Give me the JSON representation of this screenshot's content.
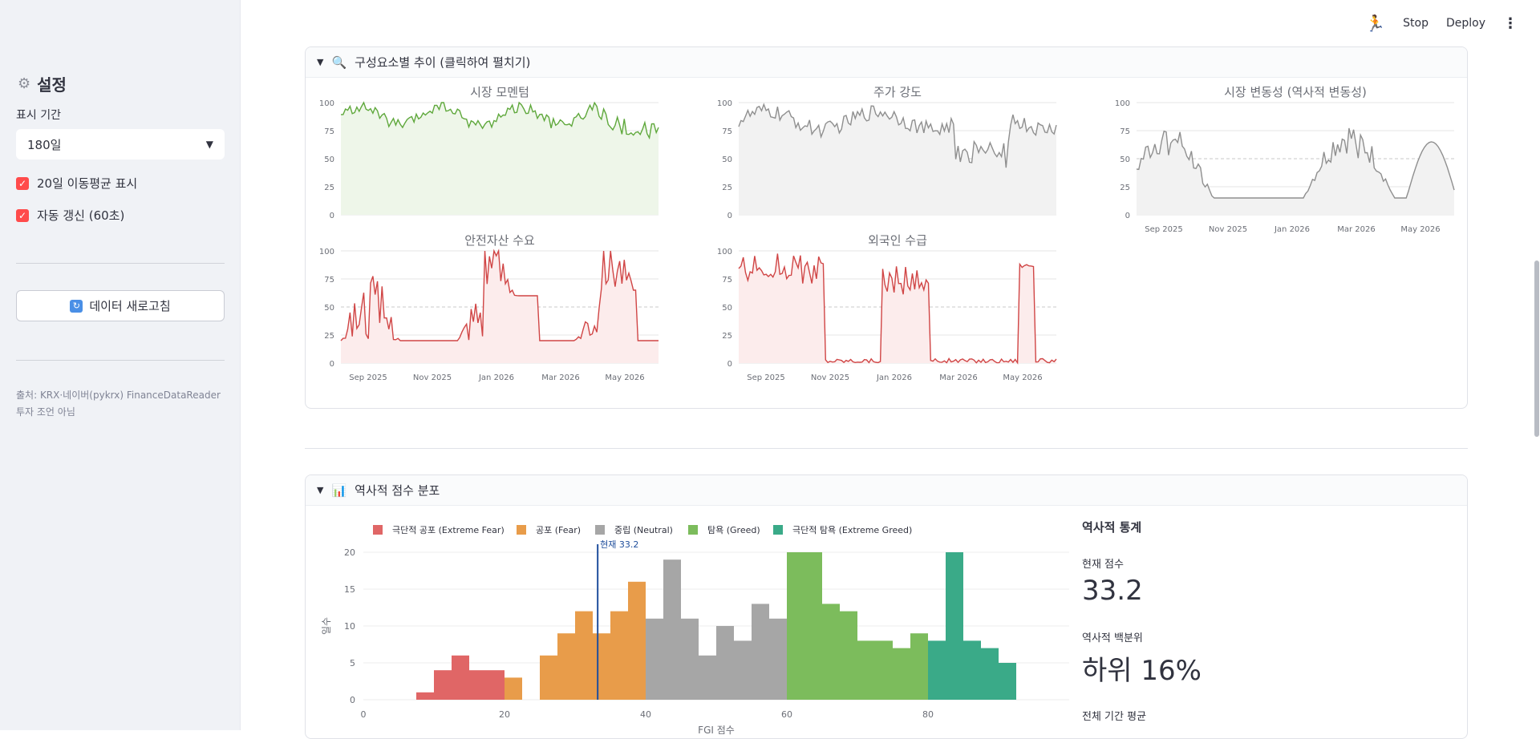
{
  "sidebar": {
    "title": "설정",
    "period_label": "표시 기간",
    "period_value": "180일",
    "ma_checkbox": "20일 이동평균 표시",
    "auto_refresh": "자동 갱신 (60초)",
    "refresh_button": "데이터 새로고침",
    "source_line1": "출처: KRX·네이버(pykrx) FinanceDataReader",
    "source_line2": "투자 조언 아님"
  },
  "topbar": {
    "stop": "Stop",
    "deploy": "Deploy"
  },
  "expander1": {
    "title": "구성요소별 추이 (클릭하여 펼치기)"
  },
  "expander2": {
    "title": "역사적 점수 분포"
  },
  "charts": [
    {
      "title": "시장 모멘텀",
      "color": "#5fa83c",
      "fill": "#eef6e9"
    },
    {
      "title": "주가 강도",
      "color": "#8f8f8f",
      "fill": "#f2f2f2"
    },
    {
      "title": "시장 변동성 (역사적 변동성)",
      "color": "#8f8f8f",
      "fill": "#f2f2f2"
    },
    {
      "title": "안전자산 수요",
      "color": "#d04545",
      "fill": "#fcecec"
    },
    {
      "title": "외국인 수급",
      "color": "#d04545",
      "fill": "#fcecec"
    }
  ],
  "yticks": [
    "100",
    "75",
    "50",
    "25",
    "0"
  ],
  "xticks": [
    "Sep 2025",
    "Nov 2025",
    "Jan 2026",
    "Mar 2026",
    "May 2026"
  ],
  "chart_data": [
    {
      "type": "histogram",
      "legend": [
        {
          "label": "극단적 공포 (Extreme Fear)",
          "color": "#e06666"
        },
        {
          "label": "공포 (Fear)",
          "color": "#e89c4a"
        },
        {
          "label": "중립 (Neutral)",
          "color": "#a6a6a6"
        },
        {
          "label": "탐욕 (Greed)",
          "color": "#7cbc5c"
        },
        {
          "label": "극단적 탐욕 (Extreme Greed)",
          "color": "#3aaa88"
        }
      ],
      "xticks": [
        "0",
        "20",
        "40",
        "60",
        "80"
      ],
      "yticks": [
        "0",
        "5",
        "10",
        "15",
        "20"
      ],
      "ylabel": "일수",
      "xlabel": "FGI 점수",
      "marker_label": "현재 33.2",
      "marker_value": 33.2,
      "bins": [
        {
          "x0": 7.5,
          "x1": 10,
          "v": 1,
          "c": 0
        },
        {
          "x0": 10,
          "x1": 12.5,
          "v": 4,
          "c": 0
        },
        {
          "x0": 12.5,
          "x1": 15,
          "v": 6,
          "c": 0
        },
        {
          "x0": 15,
          "x1": 17.5,
          "v": 4,
          "c": 0
        },
        {
          "x0": 17.5,
          "x1": 20,
          "v": 4,
          "c": 0
        },
        {
          "x0": 20,
          "x1": 22.5,
          "v": 3,
          "c": 1
        },
        {
          "x0": 25,
          "x1": 27.5,
          "v": 6,
          "c": 1
        },
        {
          "x0": 27.5,
          "x1": 30,
          "v": 9,
          "c": 1
        },
        {
          "x0": 30,
          "x1": 32.5,
          "v": 12,
          "c": 1
        },
        {
          "x0": 32.5,
          "x1": 35,
          "v": 9,
          "c": 1
        },
        {
          "x0": 35,
          "x1": 37.5,
          "v": 12,
          "c": 1
        },
        {
          "x0": 37.5,
          "x1": 40,
          "v": 16,
          "c": 1
        },
        {
          "x0": 40,
          "x1": 42.5,
          "v": 11,
          "c": 2
        },
        {
          "x0": 42.5,
          "x1": 45,
          "v": 19,
          "c": 2
        },
        {
          "x0": 45,
          "x1": 47.5,
          "v": 11,
          "c": 2
        },
        {
          "x0": 47.5,
          "x1": 50,
          "v": 6,
          "c": 2
        },
        {
          "x0": 50,
          "x1": 52.5,
          "v": 10,
          "c": 2
        },
        {
          "x0": 52.5,
          "x1": 55,
          "v": 8,
          "c": 2
        },
        {
          "x0": 55,
          "x1": 57.5,
          "v": 13,
          "c": 2
        },
        {
          "x0": 57.5,
          "x1": 60,
          "v": 11,
          "c": 2
        },
        {
          "x0": 60,
          "x1": 65,
          "v": 20,
          "c": 3
        },
        {
          "x0": 65,
          "x1": 67.5,
          "v": 13,
          "c": 3
        },
        {
          "x0": 67.5,
          "x1": 70,
          "v": 12,
          "c": 3
        },
        {
          "x0": 70,
          "x1": 75,
          "v": 8,
          "c": 3
        },
        {
          "x0": 75,
          "x1": 77.5,
          "v": 7,
          "c": 3
        },
        {
          "x0": 77.5,
          "x1": 80,
          "v": 9,
          "c": 3
        },
        {
          "x0": 80,
          "x1": 82.5,
          "v": 8,
          "c": 4
        },
        {
          "x0": 82.5,
          "x1": 85,
          "v": 20,
          "c": 4
        },
        {
          "x0": 85,
          "x1": 87.5,
          "v": 8,
          "c": 4
        },
        {
          "x0": 87.5,
          "x1": 90,
          "v": 7,
          "c": 4
        },
        {
          "x0": 90,
          "x1": 92.5,
          "v": 5,
          "c": 4
        }
      ]
    }
  ],
  "stats": {
    "title": "역사적 통계",
    "current_label": "현재 점수",
    "current_value": "33.2",
    "pct_label": "역사적 백분위",
    "pct_value": "하위 16%",
    "avg_label": "전체 기간 평균"
  }
}
